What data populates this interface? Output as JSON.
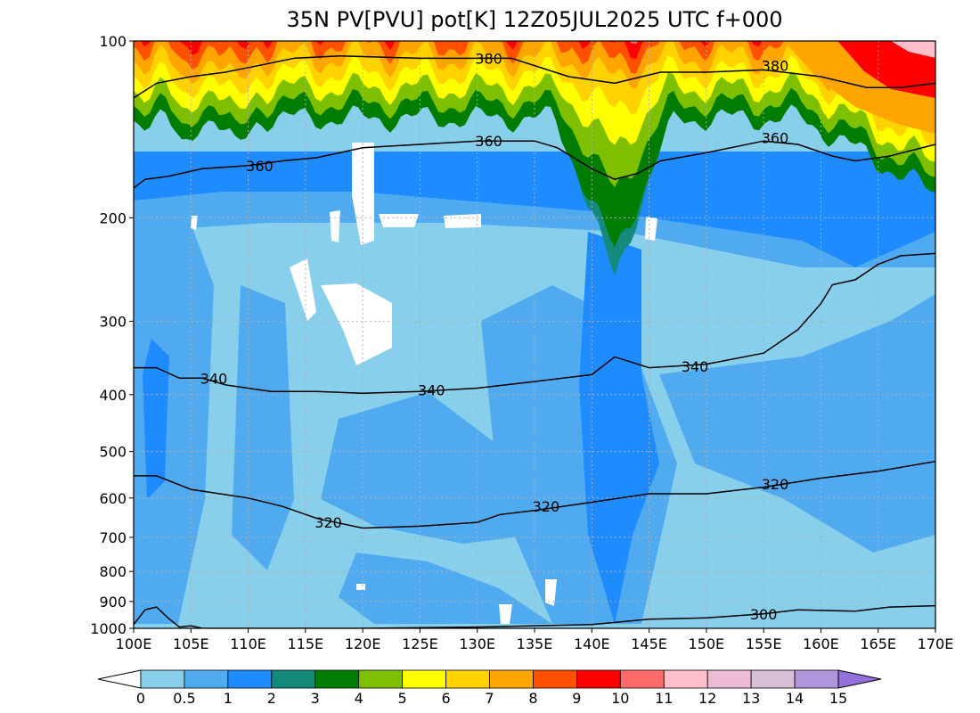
{
  "chart_data": {
    "type": "contour",
    "title": "35N PV[PVU] pot[K] 12Z05JUL2025 UTC f+000",
    "x_axis": {
      "range": [
        100,
        170
      ],
      "ticks": [
        100,
        105,
        110,
        115,
        120,
        125,
        130,
        135,
        140,
        145,
        150,
        155,
        160,
        165,
        170
      ],
      "tick_labels": [
        "100E",
        "105E",
        "110E",
        "115E",
        "120E",
        "125E",
        "130E",
        "135E",
        "140E",
        "145E",
        "150E",
        "155E",
        "160E",
        "165E",
        "170E"
      ]
    },
    "y_axis": {
      "range": [
        1000,
        100
      ],
      "scale": "log-pressure",
      "ticks": [
        100,
        200,
        300,
        400,
        500,
        600,
        700,
        800,
        900,
        1000
      ],
      "tick_labels": [
        "100",
        "200",
        "300",
        "400",
        "500",
        "600",
        "700",
        "800",
        "900",
        "1000"
      ]
    },
    "grid": true,
    "shaded_variable": "PV [PVU]",
    "colorbar": {
      "levels": [
        0,
        0.5,
        1,
        2,
        3,
        4,
        5,
        6,
        7,
        8,
        9,
        10,
        11,
        12,
        13,
        14,
        15
      ],
      "labels": [
        "0",
        "0.5",
        "1",
        "2",
        "3",
        "4",
        "5",
        "6",
        "7",
        "8",
        "9",
        "10",
        "11",
        "12",
        "13",
        "14",
        "15"
      ],
      "colors": [
        "#87cfeb",
        "#50aaf0",
        "#1e8cff",
        "#138a7c",
        "#007d00",
        "#7ec000",
        "#ffff00",
        "#ffd200",
        "#ffa500",
        "#ff5000",
        "#ff0000",
        "#ff6a6a",
        "#ffc0cb",
        "#eebbd4",
        "#d8bfd8",
        "#b195dd"
      ],
      "under_color": "#ffffff",
      "over_color": "#9370db",
      "extend": "both"
    },
    "contours": [
      {
        "value": 300,
        "label": "300",
        "points": [
          [
            100,
            985
          ],
          [
            101,
            930
          ],
          [
            102,
            920
          ],
          [
            103,
            960
          ],
          [
            104,
            995
          ],
          [
            105,
            990
          ],
          [
            106,
            1000
          ],
          [
            110,
            1000
          ],
          [
            120,
            1000
          ],
          [
            130,
            995
          ],
          [
            135,
            990
          ],
          [
            140,
            985
          ],
          [
            145,
            965
          ],
          [
            150,
            960
          ],
          [
            155,
            945
          ],
          [
            158,
            930
          ],
          [
            163,
            935
          ],
          [
            166,
            920
          ],
          [
            170,
            915
          ]
        ]
      },
      {
        "value": 320,
        "label": "320",
        "points": [
          [
            100,
            550
          ],
          [
            102,
            550
          ],
          [
            105,
            580
          ],
          [
            110,
            600
          ],
          [
            113,
            620
          ],
          [
            116,
            650
          ],
          [
            120,
            675
          ],
          [
            125,
            670
          ],
          [
            130,
            660
          ],
          [
            132,
            640
          ],
          [
            135,
            630
          ],
          [
            140,
            610
          ],
          [
            145,
            590
          ],
          [
            150,
            590
          ],
          [
            155,
            575
          ],
          [
            160,
            555
          ],
          [
            165,
            540
          ],
          [
            170,
            520
          ]
        ]
      },
      {
        "value": 340,
        "label": "340",
        "points": [
          [
            100,
            360
          ],
          [
            102,
            360
          ],
          [
            104,
            375
          ],
          [
            106,
            375
          ],
          [
            108,
            385
          ],
          [
            112,
            395
          ],
          [
            116,
            395
          ],
          [
            120,
            398
          ],
          [
            125,
            395
          ],
          [
            130,
            390
          ],
          [
            135,
            380
          ],
          [
            140,
            370
          ],
          [
            142,
            345
          ],
          [
            145,
            360
          ],
          [
            150,
            355
          ],
          [
            155,
            340
          ],
          [
            158,
            310
          ],
          [
            160,
            280
          ],
          [
            161,
            260
          ],
          [
            163,
            255
          ],
          [
            165,
            240
          ],
          [
            167,
            232
          ],
          [
            170,
            230
          ]
        ]
      },
      {
        "value": 360,
        "label": "360",
        "points": [
          [
            100,
            178
          ],
          [
            101,
            172
          ],
          [
            103,
            170
          ],
          [
            106,
            165
          ],
          [
            110,
            163
          ],
          [
            113,
            160
          ],
          [
            116,
            158
          ],
          [
            120,
            152
          ],
          [
            125,
            150
          ],
          [
            130,
            148
          ],
          [
            135,
            148
          ],
          [
            137,
            152
          ],
          [
            140,
            165
          ],
          [
            142,
            172
          ],
          [
            144,
            168
          ],
          [
            146,
            160
          ],
          [
            150,
            155
          ],
          [
            155,
            148
          ],
          [
            158,
            150
          ],
          [
            161,
            157
          ],
          [
            163,
            160
          ],
          [
            166,
            157
          ],
          [
            170,
            150
          ]
        ]
      },
      {
        "value": 380,
        "label": "380",
        "points": [
          [
            100,
            125
          ],
          [
            102,
            118
          ],
          [
            105,
            115
          ],
          [
            108,
            113
          ],
          [
            111,
            110
          ],
          [
            114,
            107
          ],
          [
            118,
            106
          ],
          [
            125,
            107
          ],
          [
            130,
            107
          ],
          [
            133,
            107
          ],
          [
            138,
            115
          ],
          [
            142,
            118
          ],
          [
            146,
            113
          ],
          [
            150,
            113
          ],
          [
            155,
            112
          ],
          [
            160,
            115
          ],
          [
            164,
            120
          ],
          [
            167,
            120
          ],
          [
            170,
            118
          ]
        ]
      }
    ],
    "contour_labels": [
      {
        "text": "380",
        "lon": 131,
        "p": 107
      },
      {
        "text": "380",
        "lon": 156,
        "p": 110
      },
      {
        "text": "360",
        "lon": 131,
        "p": 148
      },
      {
        "text": "360",
        "lon": 156,
        "p": 146
      },
      {
        "text": "360",
        "lon": 111,
        "p": 163
      },
      {
        "text": "340",
        "lon": 107,
        "p": 375
      },
      {
        "text": "340",
        "lon": 126,
        "p": 393
      },
      {
        "text": "340",
        "lon": 149,
        "p": 358
      },
      {
        "text": "320",
        "lon": 117,
        "p": 660
      },
      {
        "text": "320",
        "lon": 136,
        "p": 620
      },
      {
        "text": "320",
        "lon": 156,
        "p": 568
      },
      {
        "text": "300",
        "lon": 155,
        "p": 945
      }
    ],
    "pv_field": {
      "description": "Low PV (0-1) throughout troposphere; high PV (4-13) above ~200 hPa; deep stratospheric intrusion near 142E reaching ~340 hPa; secondary intrusions near 108E and 163-170E."
    }
  }
}
